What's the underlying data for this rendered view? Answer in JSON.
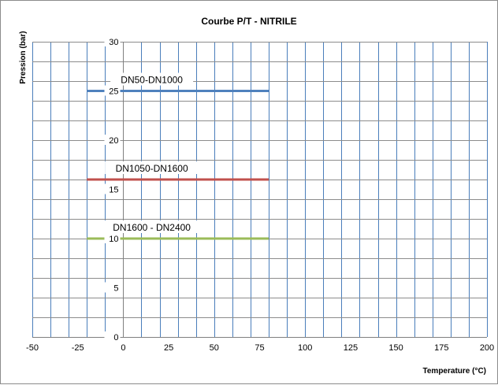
{
  "chart_data": {
    "type": "line",
    "title": "Courbe P/T - NITRILE",
    "xlabel": "Temperature (°C)",
    "ylabel": "Pression (bar)",
    "xlim": [
      -50,
      200
    ],
    "ylim": [
      0,
      30
    ],
    "x_major_ticks": [
      -50,
      -25,
      0,
      25,
      50,
      75,
      100,
      125,
      150,
      175,
      200
    ],
    "y_major_ticks": [
      0,
      5,
      10,
      15,
      20,
      25,
      30
    ],
    "x_grid_step": 10,
    "y_grid_step": 2,
    "grid": true,
    "legend": "none",
    "series": [
      {
        "name": "DN50-DN1000",
        "x": [
          -20,
          80
        ],
        "y": [
          25,
          25
        ],
        "color": "#4f81bd"
      },
      {
        "name": "DN1050-DN1600",
        "x": [
          -20,
          80
        ],
        "y": [
          16,
          16
        ],
        "color": "#c0504d"
      },
      {
        "name": "DN1600 - DN2400",
        "x": [
          -20,
          80
        ],
        "y": [
          10,
          10
        ],
        "color": "#9bbb59"
      }
    ]
  }
}
